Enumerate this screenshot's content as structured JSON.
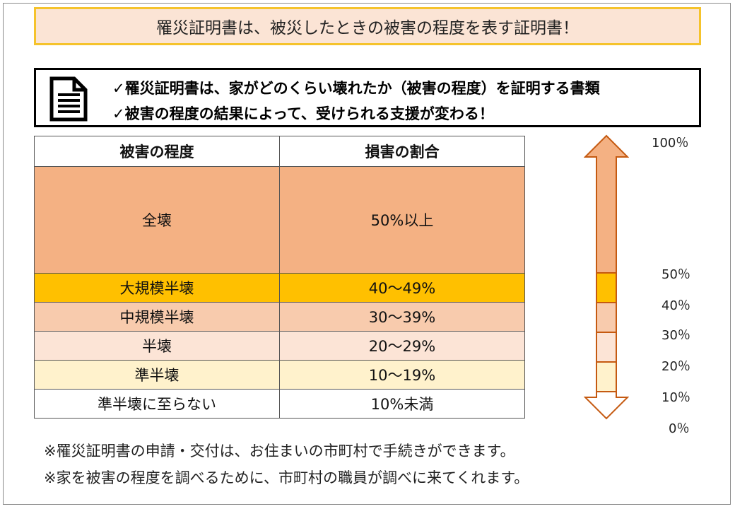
{
  "title": "罹災証明書は、被災したときの被害の程度を表す証明書！",
  "info": {
    "line1": "✓罹災証明書は、家がどのくらい壊れたか（被害の程度）を証明する書類",
    "line2": "✓被害の程度の結果によって、受けられる支援が変わる！",
    "icon": "document-icon"
  },
  "table": {
    "headers": [
      "被害の程度",
      "損害の割合"
    ],
    "rows": [
      {
        "level": "全壊",
        "ratio": "50%以上",
        "color": "#f4b183"
      },
      {
        "level": "大規模半壊",
        "ratio": "40～49%",
        "color": "#ffc000"
      },
      {
        "level": "中規模半壊",
        "ratio": "30～39%",
        "color": "#f8cbad"
      },
      {
        "level": "半壊",
        "ratio": "20～29%",
        "color": "#fce4d6"
      },
      {
        "level": "準半壊",
        "ratio": "10～19%",
        "color": "#fff2cc"
      },
      {
        "level": "準半壊に至らない",
        "ratio": "10%未満",
        "color": "#ffffff"
      }
    ]
  },
  "scale_labels": [
    "100％",
    "50％",
    "40％",
    "30％",
    "20％",
    "10％",
    "0％"
  ],
  "notes": [
    "※罹災証明書の申請・交付は、お住まいの市町村で手続きができます。",
    "※家を被害の程度を調べるために、市町村の職員が調べに来てくれます。"
  ]
}
